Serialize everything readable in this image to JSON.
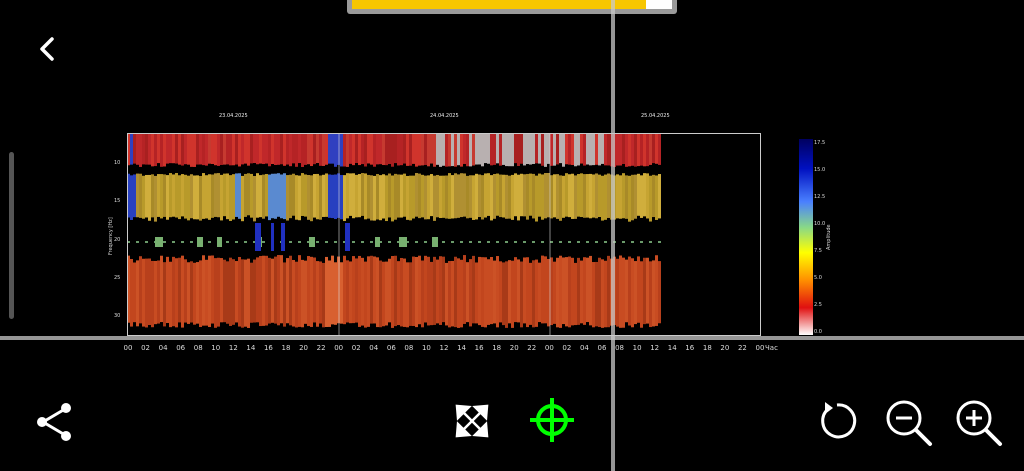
{
  "dates": [
    "23.04.2025",
    "24.04.2025",
    "25.04.2025"
  ],
  "hour_ticks": [
    "00",
    "02",
    "04",
    "06",
    "08",
    "10",
    "12",
    "14",
    "16",
    "18",
    "20",
    "22",
    "00",
    "02",
    "04",
    "06",
    "08",
    "10",
    "12",
    "14",
    "16",
    "18",
    "20",
    "22",
    "00",
    "02",
    "04",
    "06",
    "08",
    "10",
    "12",
    "14",
    "16",
    "18",
    "20",
    "22",
    "00"
  ],
  "time_unit": "Час",
  "y_axis": {
    "label": "Frequency [Hz]",
    "ticks": [
      "10",
      "15",
      "20",
      "25",
      "30"
    ]
  },
  "colorbar": {
    "label": "Amplitude",
    "ticks": [
      "17.5",
      "15.0",
      "12.5",
      "10.0",
      "7.5",
      "5.0",
      "2.5",
      "0.0"
    ]
  },
  "colors": {
    "accent_green": "#00ff00",
    "bar_yellow": "#f7c600"
  },
  "icons": {
    "back": "back-chevron-icon",
    "share": "share-icon",
    "fullscreen": "expand-arrows-icon",
    "target": "crosshair-target-icon",
    "reset": "refresh-icon",
    "zoom_out": "zoom-out-icon",
    "zoom_in": "zoom-in-icon"
  },
  "chart_data": {
    "type": "heatmap",
    "x": [
      "00",
      "02",
      "04",
      "06",
      "08",
      "10",
      "12",
      "14",
      "16",
      "18",
      "20",
      "22",
      "00",
      "02",
      "04",
      "06",
      "08",
      "10",
      "12",
      "14",
      "16",
      "18",
      "20",
      "22",
      "00",
      "02",
      "04",
      "06",
      "08",
      "10",
      "12",
      "14",
      "16",
      "18",
      "20",
      "22",
      "00"
    ],
    "ylabel": "Frequency [Hz]",
    "xlabel": "Час",
    "ylim": [
      7,
      33
    ],
    "colorbar_label": "Amplitude",
    "colorbar_range": [
      0,
      17.5
    ],
    "grid": true
  }
}
